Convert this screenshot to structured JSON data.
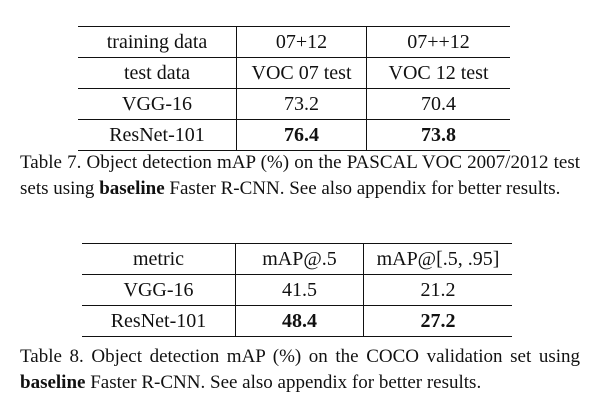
{
  "table7": {
    "header_row1": [
      "training data",
      "07+12",
      "07++12"
    ],
    "header_row2": [
      "test data",
      "VOC 07 test",
      "VOC 12 test"
    ],
    "rows": [
      {
        "model": "VGG-16",
        "v1": "73.2",
        "v2": "70.4"
      },
      {
        "model": "ResNet-101",
        "v1": "76.4",
        "v2": "73.8"
      }
    ],
    "caption": {
      "before": "Table 7. Object detection mAP (%) on the PASCAL VOC 2007/2012 test sets using ",
      "bold": "baseline",
      "after": " Faster R-CNN. See also appendix for better results."
    }
  },
  "table8": {
    "header": [
      "metric",
      "mAP@.5",
      "mAP@[.5, .95]"
    ],
    "rows": [
      {
        "model": "VGG-16",
        "v1": "41.5",
        "v2": "21.2"
      },
      {
        "model": "ResNet-101",
        "v1": "48.4",
        "v2": "27.2"
      }
    ],
    "caption": {
      "before": "Table 8. Object detection mAP (%) on the COCO validation set using ",
      "bold": "baseline",
      "after": " Faster R-CNN. See also appendix for better results."
    }
  }
}
